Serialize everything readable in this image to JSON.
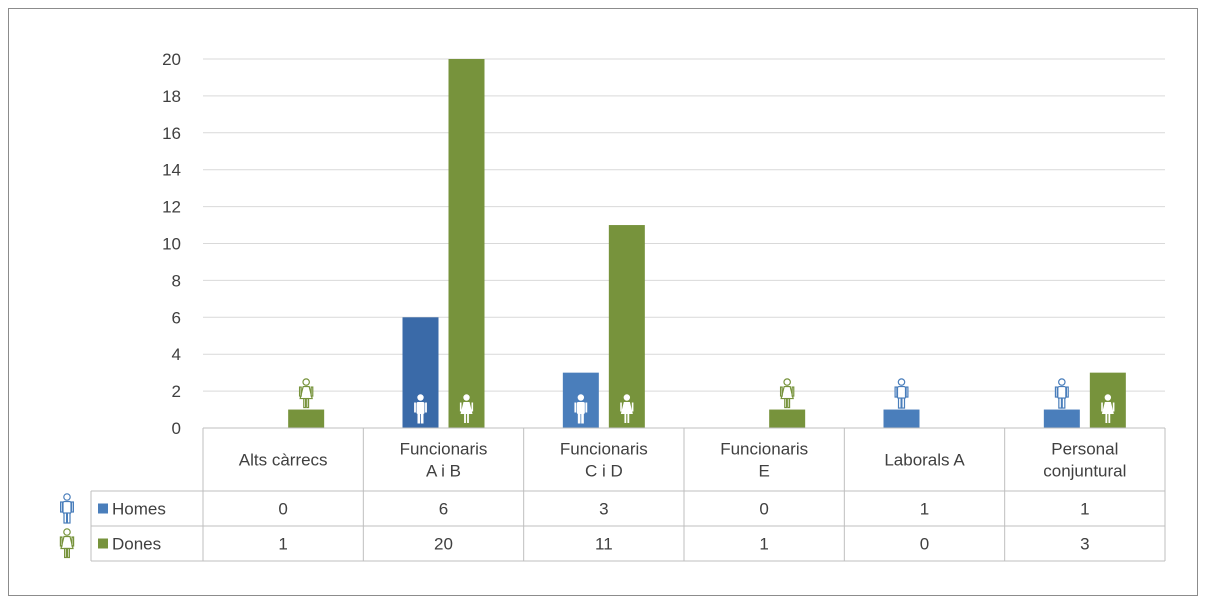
{
  "chart_data": {
    "type": "bar",
    "categories": [
      [
        "Alts càrrecs"
      ],
      [
        "Funcionaris",
        "A i B"
      ],
      [
        "Funcionaris",
        "C i D"
      ],
      [
        "Funcionaris",
        "E"
      ],
      [
        "Laborals A"
      ],
      [
        "Personal",
        "conjuntural"
      ]
    ],
    "series": [
      {
        "name": "Homes",
        "color": "#4a7ebb",
        "dark_color": "#3a6aa8",
        "icon": "man-icon",
        "values": [
          0,
          6,
          3,
          0,
          1,
          1
        ]
      },
      {
        "name": "Dones",
        "color": "#77933c",
        "dark_color": "#77933c",
        "icon": "woman-icon",
        "values": [
          1,
          20,
          11,
          1,
          0,
          3
        ]
      }
    ],
    "ylim": [
      0,
      20
    ],
    "yticks": [
      0,
      2,
      4,
      6,
      8,
      10,
      12,
      14,
      16,
      18,
      20
    ],
    "grid": true,
    "legend": "data-table",
    "data_table": true
  }
}
